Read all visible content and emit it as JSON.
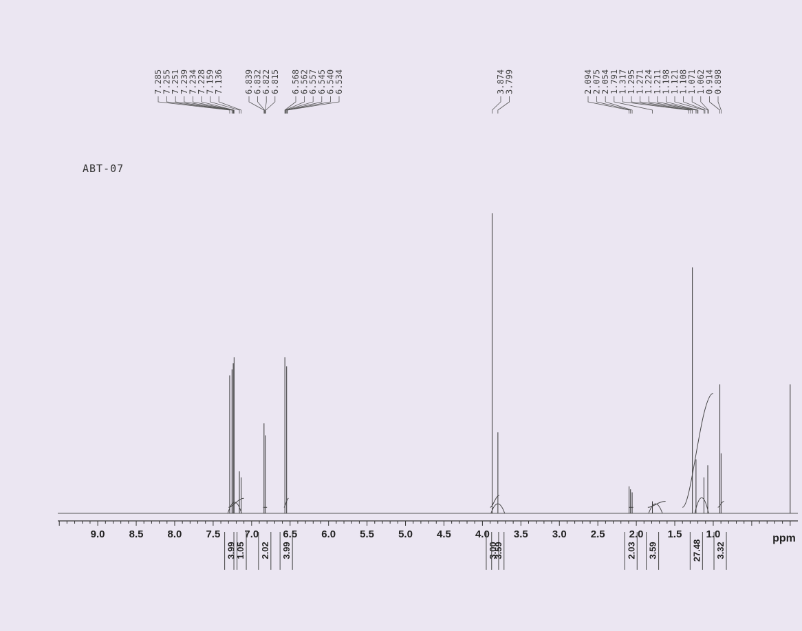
{
  "sample": {
    "label": "ABT-07"
  },
  "chart_data": {
    "type": "line",
    "title": "ABT-07",
    "xlabel": "ppm",
    "xlim": [
      9.6,
      -0.1
    ],
    "reversed_x": true,
    "x_ticks": [
      "9.0",
      "8.5",
      "8.0",
      "7.5",
      "7.0",
      "6.5",
      "6.0",
      "5.5",
      "5.0",
      "4.5",
      "4.0",
      "3.5",
      "3.0",
      "2.5",
      "2.0",
      "1.5",
      "1.0"
    ],
    "peak_groups": [
      {
        "labels": [
          "7.285",
          "7.255",
          "7.251",
          "7.239",
          "7.234",
          "7.228",
          "7.159",
          "7.136"
        ]
      },
      {
        "labels": [
          "6.839",
          "6.832",
          "6.822",
          "6.815"
        ]
      },
      {
        "labels": [
          "6.568",
          "6.562",
          "6.557",
          "6.545",
          "6.540",
          "6.534"
        ]
      },
      {
        "labels": [
          "3.874",
          "3.799"
        ]
      },
      {
        "labels": [
          "2.094",
          "2.075",
          "2.054",
          "1.791",
          "1.317",
          "1.295",
          "1.271",
          "1.224",
          "1.211",
          "1.198",
          "1.121",
          "1.108",
          "1.071",
          "1.062",
          "0.914",
          "0.898"
        ]
      }
    ],
    "peaks": [
      {
        "ppm": 7.285,
        "height": 0.46
      },
      {
        "ppm": 7.255,
        "height": 0.48
      },
      {
        "ppm": 7.239,
        "height": 0.5
      },
      {
        "ppm": 7.228,
        "height": 0.52
      },
      {
        "ppm": 7.159,
        "height": 0.14
      },
      {
        "ppm": 7.136,
        "height": 0.12
      },
      {
        "ppm": 6.839,
        "height": 0.3
      },
      {
        "ppm": 6.822,
        "height": 0.26
      },
      {
        "ppm": 6.568,
        "height": 0.52
      },
      {
        "ppm": 6.545,
        "height": 0.49
      },
      {
        "ppm": 3.874,
        "height": 1.0
      },
      {
        "ppm": 3.799,
        "height": 0.27
      },
      {
        "ppm": 2.094,
        "height": 0.09
      },
      {
        "ppm": 2.075,
        "height": 0.08
      },
      {
        "ppm": 2.054,
        "height": 0.07
      },
      {
        "ppm": 1.791,
        "height": 0.04
      },
      {
        "ppm": 1.271,
        "height": 0.82
      },
      {
        "ppm": 1.224,
        "height": 0.18
      },
      {
        "ppm": 1.121,
        "height": 0.12
      },
      {
        "ppm": 1.071,
        "height": 0.16
      },
      {
        "ppm": 0.914,
        "height": 0.43
      },
      {
        "ppm": 0.898,
        "height": 0.2
      },
      {
        "ppm": 0.0,
        "height": 0.43
      }
    ],
    "integrations": [
      {
        "value": "3.99",
        "ppm": 7.27
      },
      {
        "value": "1.05",
        "ppm": 7.15
      },
      {
        "value": "2.02",
        "ppm": 6.83
      },
      {
        "value": "3.99",
        "ppm": 6.55
      },
      {
        "value": "3.00",
        "ppm": 3.87
      },
      {
        "value": "3.59",
        "ppm": 3.8
      },
      {
        "value": "2.03",
        "ppm": 2.07
      },
      {
        "value": "3.59",
        "ppm": 1.79
      },
      {
        "value": "27.48",
        "ppm": 1.22
      },
      {
        "value": "3.32",
        "ppm": 0.91
      }
    ]
  }
}
